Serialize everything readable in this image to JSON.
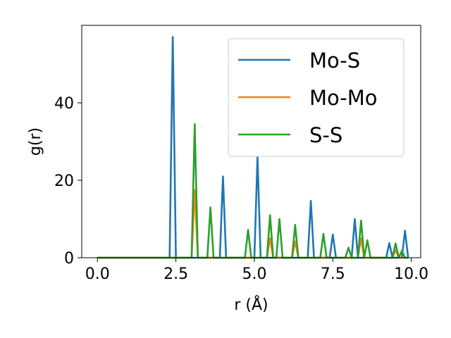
{
  "chart_data": {
    "type": "line",
    "xlabel": "r (Å)",
    "ylabel": "g(r)",
    "xlim": [
      -0.5,
      10.3
    ],
    "ylim": [
      0,
      60
    ],
    "xticks": [
      0.0,
      2.5,
      5.0,
      7.5,
      10.0
    ],
    "xtick_labels": [
      "0.0",
      "2.5",
      "5.0",
      "7.5",
      "10.0"
    ],
    "yticks": [
      0,
      20,
      40
    ],
    "ytick_labels": [
      "0",
      "20",
      "40"
    ],
    "grid": false,
    "legend_position": "top-right",
    "series": [
      {
        "name": "Mo-S",
        "color": "#1f77b4",
        "baseline": [
          0,
          9.9
        ],
        "peaks": [
          [
            2.4,
            57
          ],
          [
            4.0,
            21
          ],
          [
            5.1,
            26
          ],
          [
            6.8,
            14.7
          ],
          [
            7.5,
            6
          ],
          [
            8.2,
            10
          ],
          [
            9.3,
            3.8
          ],
          [
            9.8,
            7
          ]
        ]
      },
      {
        "name": "Mo-Mo",
        "color": "#ff7f0e",
        "baseline": [
          0,
          9.9
        ],
        "peaks": [
          [
            3.1,
            17.5
          ],
          [
            5.5,
            5
          ],
          [
            6.3,
            4.2
          ],
          [
            8.4,
            5
          ],
          [
            9.5,
            2
          ]
        ]
      },
      {
        "name": "S-S",
        "color": "#2ca02c",
        "baseline": [
          0,
          9.9
        ],
        "peaks": [
          [
            3.1,
            34.5
          ],
          [
            3.6,
            13
          ],
          [
            4.8,
            7.2
          ],
          [
            5.5,
            11
          ],
          [
            5.8,
            10
          ],
          [
            6.3,
            8.5
          ],
          [
            7.2,
            6.2
          ],
          [
            8.0,
            2.6
          ],
          [
            8.4,
            9.6
          ],
          [
            8.6,
            4.5
          ],
          [
            9.5,
            3.7
          ],
          [
            9.7,
            1.8
          ]
        ]
      }
    ]
  }
}
